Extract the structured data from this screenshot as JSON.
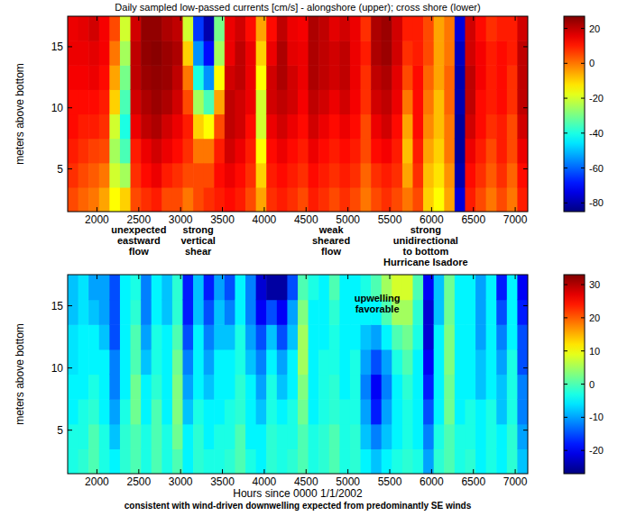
{
  "chart_data": [
    {
      "type": "heatmap",
      "title": "Daily sampled low-passed currents [cm/s] - alongshore (upper); cross shore (lower)",
      "ylabel": "meters above bottom",
      "xlim": [
        1650,
        7150
      ],
      "xticks": [
        2000,
        2500,
        3000,
        3500,
        4000,
        4500,
        5000,
        5500,
        6000,
        6500,
        7000
      ],
      "ylim": [
        1.5,
        17.5
      ],
      "yticks": [
        5,
        10,
        15
      ],
      "x": [
        1712.5,
        1837.5,
        1962.5,
        2087.5,
        2212.5,
        2337.5,
        2462.5,
        2587.5,
        2712.5,
        2837.5,
        2962.5,
        3087.5,
        3212.5,
        3337.5,
        3462.5,
        3587.5,
        3712.5,
        3837.5,
        3962.5,
        4087.5,
        4212.5,
        4337.5,
        4462.5,
        4587.5,
        4712.5,
        4837.5,
        4962.5,
        5087.5,
        5212.5,
        5337.5,
        5462.5,
        5587.5,
        5712.5,
        5837.5,
        5962.5,
        6087.5,
        6212.5,
        6337.5,
        6462.5,
        6587.5,
        6712.5,
        6837.5,
        6962.5,
        7087.5
      ],
      "y": [
        2.5,
        4.5,
        6.5,
        8.5,
        10.5,
        12.5,
        14.5,
        16.5
      ],
      "cells": [
        [
          5,
          8,
          10,
          12,
          12,
          14,
          15,
          15
        ],
        [
          2,
          5,
          8,
          10,
          12,
          14,
          15,
          16
        ],
        [
          0,
          3,
          6,
          10,
          12,
          15,
          16,
          18
        ],
        [
          -5,
          0,
          5,
          8,
          10,
          12,
          14,
          14
        ],
        [
          -15,
          -20,
          -25,
          -20,
          -10,
          -5,
          0,
          5
        ],
        [
          -10,
          -25,
          -35,
          -40,
          -35,
          -30,
          -25,
          -20
        ],
        [
          5,
          8,
          10,
          15,
          18,
          20,
          20,
          18
        ],
        [
          8,
          12,
          15,
          20,
          22,
          24,
          25,
          25
        ],
        [
          10,
          15,
          18,
          22,
          24,
          25,
          26,
          25
        ],
        [
          5,
          10,
          15,
          18,
          22,
          24,
          24,
          22
        ],
        [
          5,
          8,
          12,
          15,
          18,
          20,
          22,
          20
        ],
        [
          0,
          5,
          8,
          10,
          5,
          0,
          -10,
          -20
        ],
        [
          5,
          5,
          0,
          -10,
          -25,
          -40,
          -55,
          -65
        ],
        [
          8,
          5,
          0,
          -15,
          -35,
          -55,
          -70,
          -80
        ],
        [
          10,
          12,
          10,
          5,
          -5,
          -15,
          -25,
          -30
        ],
        [
          12,
          15,
          18,
          20,
          20,
          18,
          15,
          15
        ],
        [
          10,
          12,
          15,
          18,
          18,
          20,
          20,
          18
        ],
        [
          5,
          8,
          10,
          12,
          15,
          15,
          15,
          12
        ],
        [
          -5,
          -10,
          -15,
          -20,
          -20,
          -15,
          -10,
          -5
        ],
        [
          8,
          10,
          12,
          15,
          18,
          18,
          15,
          12
        ],
        [
          10,
          12,
          15,
          18,
          20,
          22,
          22,
          20
        ],
        [
          8,
          10,
          12,
          15,
          18,
          18,
          16,
          15
        ],
        [
          5,
          8,
          10,
          12,
          14,
          15,
          15,
          14
        ],
        [
          10,
          12,
          15,
          18,
          20,
          22,
          22,
          22
        ],
        [
          8,
          10,
          12,
          15,
          18,
          20,
          20,
          20
        ],
        [
          5,
          8,
          10,
          12,
          15,
          18,
          18,
          16
        ],
        [
          8,
          10,
          12,
          15,
          18,
          20,
          20,
          18
        ],
        [
          5,
          8,
          10,
          12,
          14,
          15,
          15,
          15
        ],
        [
          0,
          2,
          5,
          5,
          8,
          8,
          10,
          8
        ],
        [
          5,
          8,
          12,
          15,
          18,
          20,
          22,
          22
        ],
        [
          8,
          10,
          14,
          18,
          20,
          22,
          24,
          24
        ],
        [
          5,
          8,
          10,
          12,
          15,
          16,
          18,
          18
        ],
        [
          0,
          -5,
          -8,
          -5,
          0,
          5,
          8,
          10
        ],
        [
          5,
          8,
          10,
          12,
          12,
          12,
          10,
          10
        ],
        [
          -10,
          -8,
          -5,
          -2,
          0,
          2,
          5,
          5
        ],
        [
          -15,
          -12,
          -10,
          -8,
          -8,
          -5,
          -5,
          -5
        ],
        [
          -5,
          -3,
          0,
          0,
          2,
          2,
          0,
          0
        ],
        [
          -75,
          -80,
          -82,
          -82,
          -80,
          -80,
          -78,
          -75
        ],
        [
          10,
          12,
          15,
          18,
          20,
          20,
          18,
          18
        ],
        [
          5,
          8,
          10,
          12,
          12,
          14,
          14,
          12
        ],
        [
          0,
          3,
          5,
          8,
          10,
          10,
          10,
          8
        ],
        [
          5,
          8,
          10,
          10,
          12,
          12,
          12,
          10
        ],
        [
          0,
          2,
          5,
          5,
          8,
          8,
          10,
          10
        ],
        [
          10,
          12,
          15,
          18,
          20,
          20,
          20,
          18
        ]
      ],
      "colorbar": {
        "range": [
          -85,
          27
        ],
        "ticks": [
          -80,
          -60,
          -40,
          -20,
          0,
          20
        ]
      },
      "annotations": [
        {
          "x": 2500,
          "lines": [
            "unexpected",
            "eastward",
            "flow"
          ]
        },
        {
          "x": 3210,
          "lines": [
            "strong",
            "vertical",
            "shear"
          ]
        },
        {
          "x": 4800,
          "lines": [
            "weak",
            "sheared",
            "flow"
          ]
        },
        {
          "x": 5930,
          "lines": [
            "strong",
            "unidirectional",
            "to bottom",
            "Hurricane Isadore"
          ]
        }
      ]
    },
    {
      "type": "heatmap",
      "ylabel": "meters above bottom",
      "xlabel": "Hours since 0000 1/1/2002",
      "note": "consistent with wind-driven downwelling expected from predominantly SE winds",
      "xlim": [
        1650,
        7150
      ],
      "xticks": [
        2000,
        2500,
        3000,
        3500,
        4000,
        4500,
        5000,
        5500,
        6000,
        6500,
        7000
      ],
      "ylim": [
        1.5,
        17.5
      ],
      "yticks": [
        5,
        10,
        15
      ],
      "x": [
        1712.5,
        1837.5,
        1962.5,
        2087.5,
        2212.5,
        2337.5,
        2462.5,
        2587.5,
        2712.5,
        2837.5,
        2962.5,
        3087.5,
        3212.5,
        3337.5,
        3462.5,
        3587.5,
        3712.5,
        3837.5,
        3962.5,
        4087.5,
        4212.5,
        4337.5,
        4462.5,
        4587.5,
        4712.5,
        4837.5,
        4962.5,
        5087.5,
        5212.5,
        5337.5,
        5462.5,
        5587.5,
        5712.5,
        5837.5,
        5962.5,
        6087.5,
        6212.5,
        6337.5,
        6462.5,
        6587.5,
        6712.5,
        6837.5,
        6962.5,
        7087.5
      ],
      "y": [
        2.5,
        4.5,
        6.5,
        8.5,
        10.5,
        12.5,
        14.5,
        16.5
      ],
      "cells": [
        [
          -3,
          -3,
          -5,
          -5,
          -6,
          -6,
          -8,
          -8
        ],
        [
          -2,
          -3,
          -3,
          -5,
          -5,
          -5,
          -6,
          -6
        ],
        [
          0,
          0,
          -2,
          -3,
          -5,
          -5,
          -8,
          -10
        ],
        [
          -3,
          -3,
          -5,
          -5,
          -5,
          -8,
          -10,
          -10
        ],
        [
          -5,
          -8,
          -10,
          -12,
          -12,
          -15,
          -15,
          -15
        ],
        [
          -2,
          -2,
          -3,
          -5,
          -5,
          -5,
          -5,
          -5
        ],
        [
          0,
          0,
          2,
          2,
          0,
          0,
          -2,
          -3
        ],
        [
          -3,
          -3,
          -5,
          -5,
          -8,
          -10,
          -12,
          -12
        ],
        [
          0,
          0,
          0,
          -2,
          -3,
          -3,
          -5,
          -5
        ],
        [
          -3,
          -3,
          -5,
          -5,
          -5,
          -5,
          -8,
          -8
        ],
        [
          0,
          2,
          3,
          3,
          2,
          0,
          -2,
          -2
        ],
        [
          -5,
          -5,
          -8,
          -10,
          -12,
          -15,
          -18,
          -18
        ],
        [
          -2,
          -2,
          -3,
          -5,
          -5,
          -5,
          -8,
          -8
        ],
        [
          -3,
          -5,
          -5,
          -8,
          -10,
          -12,
          -15,
          -18
        ],
        [
          -3,
          -3,
          -5,
          -5,
          -5,
          -8,
          -8,
          -10
        ],
        [
          -2,
          -3,
          -3,
          -5,
          -5,
          -8,
          -12,
          -15
        ],
        [
          0,
          0,
          -2,
          -2,
          -3,
          -3,
          -5,
          -5
        ],
        [
          -3,
          -5,
          -5,
          -5,
          -8,
          -10,
          -12,
          -12
        ],
        [
          -5,
          -5,
          -8,
          -10,
          -12,
          -15,
          -20,
          -22
        ],
        [
          -2,
          -2,
          -3,
          -3,
          -5,
          -8,
          -15,
          -25
        ],
        [
          -3,
          -3,
          -5,
          -8,
          -10,
          -15,
          -20,
          -25
        ],
        [
          -2,
          -3,
          -3,
          -5,
          -5,
          -8,
          -10,
          -15
        ],
        [
          0,
          0,
          2,
          3,
          5,
          5,
          3,
          0
        ],
        [
          -3,
          -3,
          -5,
          -5,
          -5,
          -5,
          -5,
          -3
        ],
        [
          -2,
          -2,
          -3,
          -3,
          -3,
          -5,
          -5,
          -5
        ],
        [
          0,
          0,
          -2,
          -2,
          -3,
          -3,
          -2,
          0
        ],
        [
          -3,
          -3,
          -3,
          -5,
          -5,
          -5,
          -5,
          -5
        ],
        [
          -2,
          -2,
          -3,
          -3,
          -3,
          -5,
          -5,
          -5
        ],
        [
          -5,
          -8,
          -10,
          -12,
          -10,
          -8,
          -5,
          -3
        ],
        [
          -8,
          -12,
          -18,
          -20,
          -15,
          -10,
          -5,
          0
        ],
        [
          -5,
          -8,
          -10,
          -12,
          -10,
          -5,
          0,
          5
        ],
        [
          -3,
          -5,
          -5,
          -5,
          -3,
          0,
          5,
          8
        ],
        [
          -2,
          -3,
          -3,
          -2,
          0,
          2,
          5,
          8
        ],
        [
          -3,
          -5,
          -5,
          -5,
          -5,
          -3,
          -2,
          0
        ],
        [
          -10,
          -12,
          -15,
          -18,
          -20,
          -22,
          -22,
          -20
        ],
        [
          -2,
          -3,
          -5,
          -5,
          -5,
          -5,
          -8,
          -8
        ],
        [
          0,
          0,
          2,
          2,
          3,
          3,
          2,
          2
        ],
        [
          -3,
          -3,
          -5,
          -5,
          -5,
          -5,
          -5,
          -5
        ],
        [
          -2,
          -3,
          -3,
          -5,
          -5,
          -5,
          -5,
          -5
        ],
        [
          -5,
          -5,
          -5,
          -8,
          -8,
          -10,
          -10,
          -10
        ],
        [
          -3,
          -3,
          -3,
          -5,
          -5,
          -5,
          -5,
          -5
        ],
        [
          -5,
          -5,
          -8,
          -8,
          -10,
          -12,
          -15,
          -18
        ],
        [
          -2,
          -2,
          -3,
          -3,
          -3,
          -5,
          -5,
          -5
        ],
        [
          -8,
          -10,
          -12,
          -12,
          -15,
          -15,
          -18,
          -20
        ]
      ],
      "colorbar": {
        "range": [
          -27,
          33
        ],
        "ticks": [
          -20,
          -10,
          0,
          10,
          20,
          30
        ]
      },
      "annotations": [
        {
          "x": 5350,
          "y": 15.3,
          "lines": [
            "upwelling",
            "favorable"
          ]
        }
      ]
    }
  ]
}
